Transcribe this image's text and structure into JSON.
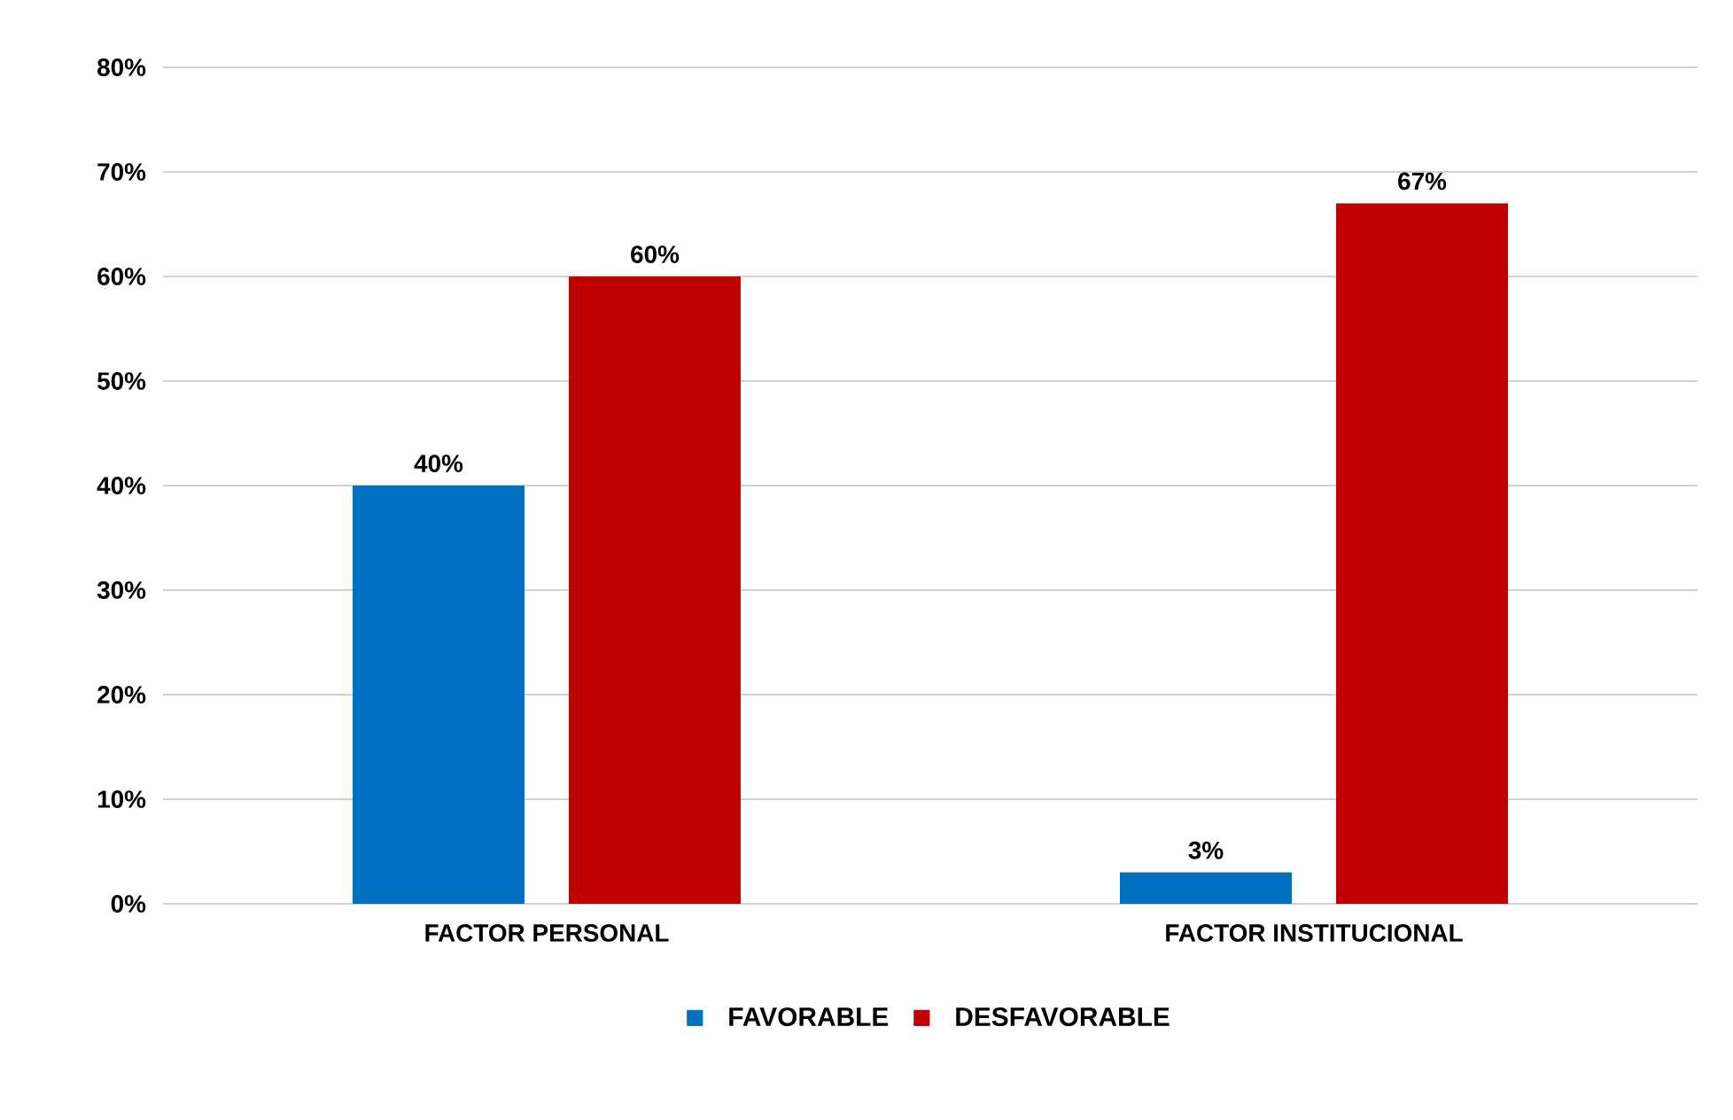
{
  "chart_data": {
    "type": "bar",
    "categories": [
      "FACTOR PERSONAL",
      "FACTOR INSTITUCIONAL"
    ],
    "series": [
      {
        "name": "FAVORABLE",
        "color": "#0070c0",
        "values": [
          40,
          3
        ],
        "value_labels": [
          "40%",
          "3%"
        ]
      },
      {
        "name": "DESFAVORABLE",
        "color": "#c00000",
        "values": [
          60,
          67
        ],
        "value_labels": [
          "60%",
          "67%"
        ]
      }
    ],
    "ylim": [
      0,
      80
    ],
    "yticks": [
      {
        "value": 0,
        "label": "0%"
      },
      {
        "value": 10,
        "label": "10%"
      },
      {
        "value": 20,
        "label": "20%"
      },
      {
        "value": 30,
        "label": "30%"
      },
      {
        "value": 40,
        "label": "40%"
      },
      {
        "value": 50,
        "label": "50%"
      },
      {
        "value": 60,
        "label": "60%"
      },
      {
        "value": 70,
        "label": "70%"
      },
      {
        "value": 80,
        "label": "80%"
      }
    ],
    "grid": "y",
    "legend": "bottom"
  }
}
